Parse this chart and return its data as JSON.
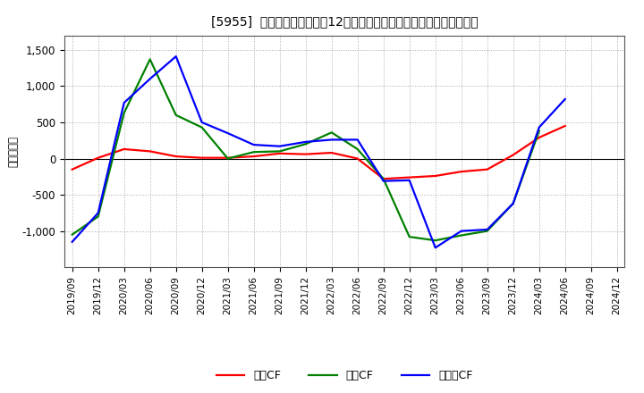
{
  "title": "[5955]  キャッシュフローの12か月移動合計の対前年同期増減額の推移",
  "ylabel": "（百万円）",
  "x_labels": [
    "2019/09",
    "2019/12",
    "2020/03",
    "2020/06",
    "2020/09",
    "2020/12",
    "2021/03",
    "2021/06",
    "2021/09",
    "2021/12",
    "2022/03",
    "2022/06",
    "2022/09",
    "2022/12",
    "2023/03",
    "2023/06",
    "2023/09",
    "2023/12",
    "2024/03",
    "2024/06",
    "2024/09",
    "2024/12"
  ],
  "operating_cf": [
    -150,
    10,
    130,
    100,
    30,
    10,
    10,
    30,
    70,
    60,
    80,
    0,
    -280,
    -260,
    -240,
    -180,
    -150,
    50,
    290,
    450,
    null,
    null
  ],
  "investing_cf": [
    -1050,
    -800,
    630,
    1370,
    600,
    430,
    0,
    90,
    100,
    200,
    360,
    130,
    -280,
    -1080,
    -1130,
    -1060,
    -1000,
    -620,
    380,
    null,
    null,
    null
  ],
  "free_cf": [
    -1150,
    -750,
    770,
    1100,
    1410,
    500,
    350,
    190,
    170,
    230,
    260,
    260,
    -310,
    -300,
    -1230,
    -1000,
    -980,
    -620,
    430,
    820,
    null,
    null
  ],
  "ylim": [
    -1500,
    1700
  ],
  "yticks": [
    -1000,
    -500,
    0,
    500,
    1000,
    1500
  ],
  "ytick_labels": [
    "-1,000",
    "-500",
    "0",
    "500",
    "1,000",
    "1,500"
  ],
  "operating_color": "#ff0000",
  "investing_color": "#008000",
  "free_color": "#0000ff",
  "background_color": "#ffffff",
  "plot_bg_color": "#ffffff",
  "grid_color": "#aaaaaa",
  "legend_labels": [
    "営業CF",
    "投資CF",
    "フリーCF"
  ]
}
